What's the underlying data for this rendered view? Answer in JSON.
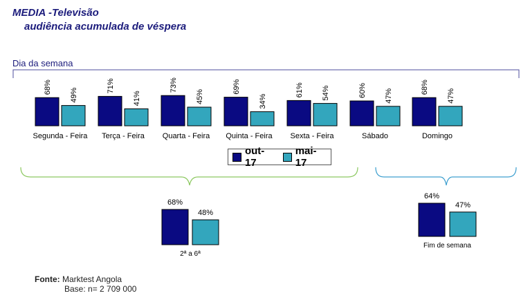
{
  "header": {
    "title_line1": "MEDIA -Televisão",
    "title_line2": "audiência acumulada de véspera",
    "section_label": "Dia da semana"
  },
  "legend": [
    {
      "name": "out-17",
      "color": "#0a0a82"
    },
    {
      "name": "mai-17",
      "color": "#33a6bd"
    }
  ],
  "chart_data": [
    {
      "type": "bar",
      "title": "Dia da semana",
      "categories": [
        "Segunda - Feira",
        "Terça - Feira",
        "Quarta - Feira",
        "Quinta - Feira",
        "Sexta - Feira",
        "Sábado",
        "Domingo"
      ],
      "series": [
        {
          "name": "out-17",
          "values": [
            68,
            71,
            73,
            69,
            61,
            60,
            68
          ],
          "labels": [
            "68%",
            "71%",
            "73%",
            "69%",
            "61%",
            "60%",
            "68%"
          ]
        },
        {
          "name": "mai-17",
          "values": [
            49,
            41,
            45,
            34,
            54,
            47,
            47
          ],
          "labels": [
            "49%",
            "41%",
            "45%",
            "34%",
            "54%",
            "47%",
            "47%"
          ]
        }
      ],
      "ylim": [
        0,
        100
      ]
    },
    {
      "type": "bar",
      "categories": [
        "2ª a 6ª"
      ],
      "series": [
        {
          "name": "out-17",
          "values": [
            68
          ],
          "labels": [
            "68%"
          ]
        },
        {
          "name": "mai-17",
          "values": [
            48
          ],
          "labels": [
            "48%"
          ]
        }
      ],
      "ylim": [
        0,
        100
      ]
    },
    {
      "type": "bar",
      "categories": [
        "Fim de semana"
      ],
      "series": [
        {
          "name": "out-17",
          "values": [
            64
          ],
          "labels": [
            "64%"
          ]
        },
        {
          "name": "mai-17",
          "values": [
            47
          ],
          "labels": [
            "47%"
          ]
        }
      ],
      "ylim": [
        0,
        100
      ]
    }
  ],
  "source": {
    "label": "Fonte:",
    "text": "Marktest Angola",
    "base": "Base: n= 2 709 000"
  },
  "colors": {
    "bracket_weekday": "#8cc860",
    "bracket_weekend": "#3d9fcf",
    "bracket_top": "#4d4d9e"
  }
}
